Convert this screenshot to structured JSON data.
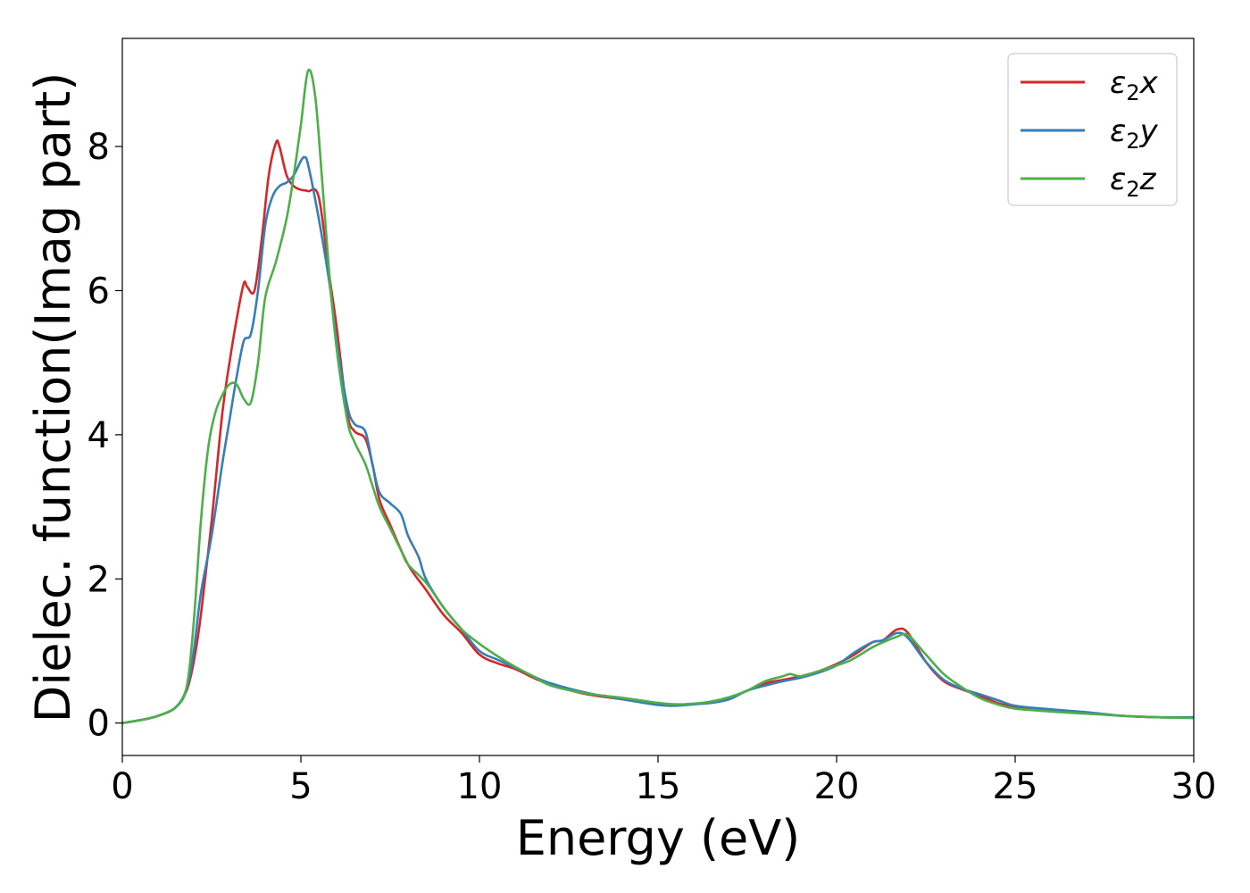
{
  "chart_data": {
    "type": "line",
    "xlabel": "Energy (eV)",
    "ylabel": "Dielec. function(Imag part)",
    "xlim": [
      0,
      30
    ],
    "ylim": [
      -0.45,
      9.5
    ],
    "xticks": [
      "0",
      "5",
      "10",
      "15",
      "20",
      "25",
      "30"
    ],
    "xtick_values": [
      0,
      5,
      10,
      15,
      20,
      25,
      30
    ],
    "yticks": [
      "0",
      "2",
      "4",
      "6",
      "8"
    ],
    "ytick_values": [
      0,
      2,
      4,
      6,
      8
    ],
    "grid": false,
    "legend_position": "top-right",
    "series": [
      {
        "name": "ε2x",
        "symbol": "ε",
        "subscript": "2",
        "component": "x",
        "color": "#d62728",
        "x": [
          0,
          0.5,
          1.0,
          1.5,
          1.8,
          2.0,
          2.2,
          2.5,
          2.8,
          3.0,
          3.2,
          3.4,
          3.5,
          3.7,
          3.9,
          4.1,
          4.3,
          4.4,
          4.6,
          4.8,
          5.0,
          5.2,
          5.5,
          5.8,
          6.0,
          6.3,
          6.5,
          6.8,
          7.0,
          7.2,
          7.5,
          8.0,
          8.5,
          9.0,
          9.5,
          10.0,
          10.5,
          11.0,
          11.5,
          12.0,
          13.0,
          14.0,
          15.0,
          15.5,
          16.0,
          16.5,
          17.0,
          17.5,
          18.0,
          18.5,
          19.0,
          19.5,
          20.0,
          20.5,
          21.0,
          21.3,
          21.7,
          22.0,
          22.5,
          23.0,
          23.5,
          24.0,
          24.5,
          25.0,
          26.0,
          27.0,
          28.0,
          29.0,
          30.0
        ],
        "y": [
          0.0,
          0.04,
          0.1,
          0.22,
          0.45,
          0.85,
          1.5,
          2.8,
          4.3,
          5.0,
          5.6,
          6.1,
          6.05,
          6.0,
          6.7,
          7.6,
          8.05,
          8.0,
          7.6,
          7.45,
          7.4,
          7.38,
          7.3,
          6.2,
          5.5,
          4.3,
          4.05,
          3.95,
          3.6,
          3.1,
          2.75,
          2.2,
          1.85,
          1.5,
          1.25,
          0.95,
          0.83,
          0.75,
          0.63,
          0.53,
          0.4,
          0.33,
          0.26,
          0.25,
          0.26,
          0.3,
          0.35,
          0.45,
          0.55,
          0.6,
          0.65,
          0.72,
          0.82,
          0.95,
          1.12,
          1.15,
          1.3,
          1.25,
          0.85,
          0.58,
          0.47,
          0.38,
          0.28,
          0.22,
          0.18,
          0.14,
          0.1,
          0.08,
          0.08
        ]
      },
      {
        "name": "ε2y",
        "symbol": "ε",
        "subscript": "2",
        "component": "y",
        "color": "#377eb8",
        "x": [
          0,
          0.5,
          1.0,
          1.5,
          1.8,
          2.0,
          2.2,
          2.5,
          2.8,
          3.0,
          3.2,
          3.4,
          3.6,
          3.8,
          4.0,
          4.2,
          4.4,
          4.6,
          4.8,
          5.0,
          5.1,
          5.2,
          5.5,
          5.8,
          6.0,
          6.3,
          6.5,
          6.8,
          7.0,
          7.2,
          7.5,
          7.8,
          8.0,
          8.3,
          8.5,
          9.0,
          9.5,
          10.0,
          10.5,
          11.0,
          11.5,
          12.0,
          13.0,
          14.0,
          15.0,
          15.5,
          16.0,
          16.5,
          17.0,
          17.5,
          18.0,
          18.5,
          19.0,
          19.5,
          20.0,
          20.5,
          21.0,
          21.3,
          21.7,
          22.0,
          22.5,
          23.0,
          23.5,
          24.0,
          24.5,
          25.0,
          26.0,
          27.0,
          28.0,
          29.0,
          30.0
        ],
        "y": [
          0.0,
          0.04,
          0.1,
          0.22,
          0.48,
          1.0,
          1.8,
          2.6,
          3.6,
          4.2,
          4.8,
          5.3,
          5.4,
          6.0,
          6.9,
          7.3,
          7.45,
          7.5,
          7.6,
          7.8,
          7.85,
          7.75,
          7.0,
          6.1,
          5.3,
          4.4,
          4.15,
          4.05,
          3.6,
          3.2,
          3.05,
          2.9,
          2.6,
          2.3,
          2.0,
          1.6,
          1.3,
          1.0,
          0.88,
          0.77,
          0.65,
          0.55,
          0.42,
          0.33,
          0.25,
          0.24,
          0.26,
          0.28,
          0.33,
          0.45,
          0.52,
          0.58,
          0.63,
          0.7,
          0.8,
          0.98,
          1.12,
          1.15,
          1.25,
          1.18,
          0.85,
          0.6,
          0.48,
          0.4,
          0.32,
          0.24,
          0.19,
          0.15,
          0.1,
          0.08,
          0.08
        ]
      },
      {
        "name": "ε2z",
        "symbol": "ε",
        "subscript": "2",
        "component": "z",
        "color": "#4daf4a",
        "x": [
          0,
          0.5,
          1.0,
          1.5,
          1.8,
          2.0,
          2.2,
          2.4,
          2.6,
          2.8,
          3.0,
          3.2,
          3.4,
          3.6,
          3.8,
          4.0,
          4.3,
          4.6,
          4.8,
          5.0,
          5.2,
          5.4,
          5.6,
          5.8,
          6.0,
          6.3,
          6.5,
          6.8,
          7.0,
          7.2,
          7.5,
          7.8,
          8.0,
          8.5,
          9.0,
          9.5,
          10.0,
          10.5,
          11.0,
          11.5,
          12.0,
          13.0,
          14.0,
          15.0,
          15.5,
          16.0,
          16.5,
          17.0,
          17.5,
          18.0,
          18.5,
          18.7,
          19.0,
          19.5,
          20.0,
          20.3,
          20.5,
          21.0,
          21.3,
          21.7,
          22.0,
          22.5,
          23.0,
          23.5,
          24.0,
          24.5,
          25.0,
          26.0,
          27.0,
          28.0,
          29.0,
          30.0
        ],
        "y": [
          0.0,
          0.04,
          0.1,
          0.22,
          0.5,
          1.4,
          2.8,
          3.8,
          4.3,
          4.55,
          4.7,
          4.7,
          4.5,
          4.45,
          5.0,
          5.9,
          6.4,
          7.0,
          7.6,
          8.3,
          9.05,
          8.7,
          7.5,
          6.2,
          5.2,
          4.2,
          3.9,
          3.6,
          3.3,
          3.0,
          2.7,
          2.4,
          2.2,
          1.95,
          1.6,
          1.3,
          1.1,
          0.93,
          0.78,
          0.65,
          0.52,
          0.41,
          0.35,
          0.28,
          0.26,
          0.27,
          0.3,
          0.36,
          0.45,
          0.58,
          0.65,
          0.68,
          0.65,
          0.72,
          0.8,
          0.85,
          0.9,
          1.05,
          1.12,
          1.2,
          1.22,
          0.95,
          0.68,
          0.5,
          0.35,
          0.26,
          0.2,
          0.16,
          0.13,
          0.1,
          0.08,
          0.07
        ]
      }
    ]
  }
}
